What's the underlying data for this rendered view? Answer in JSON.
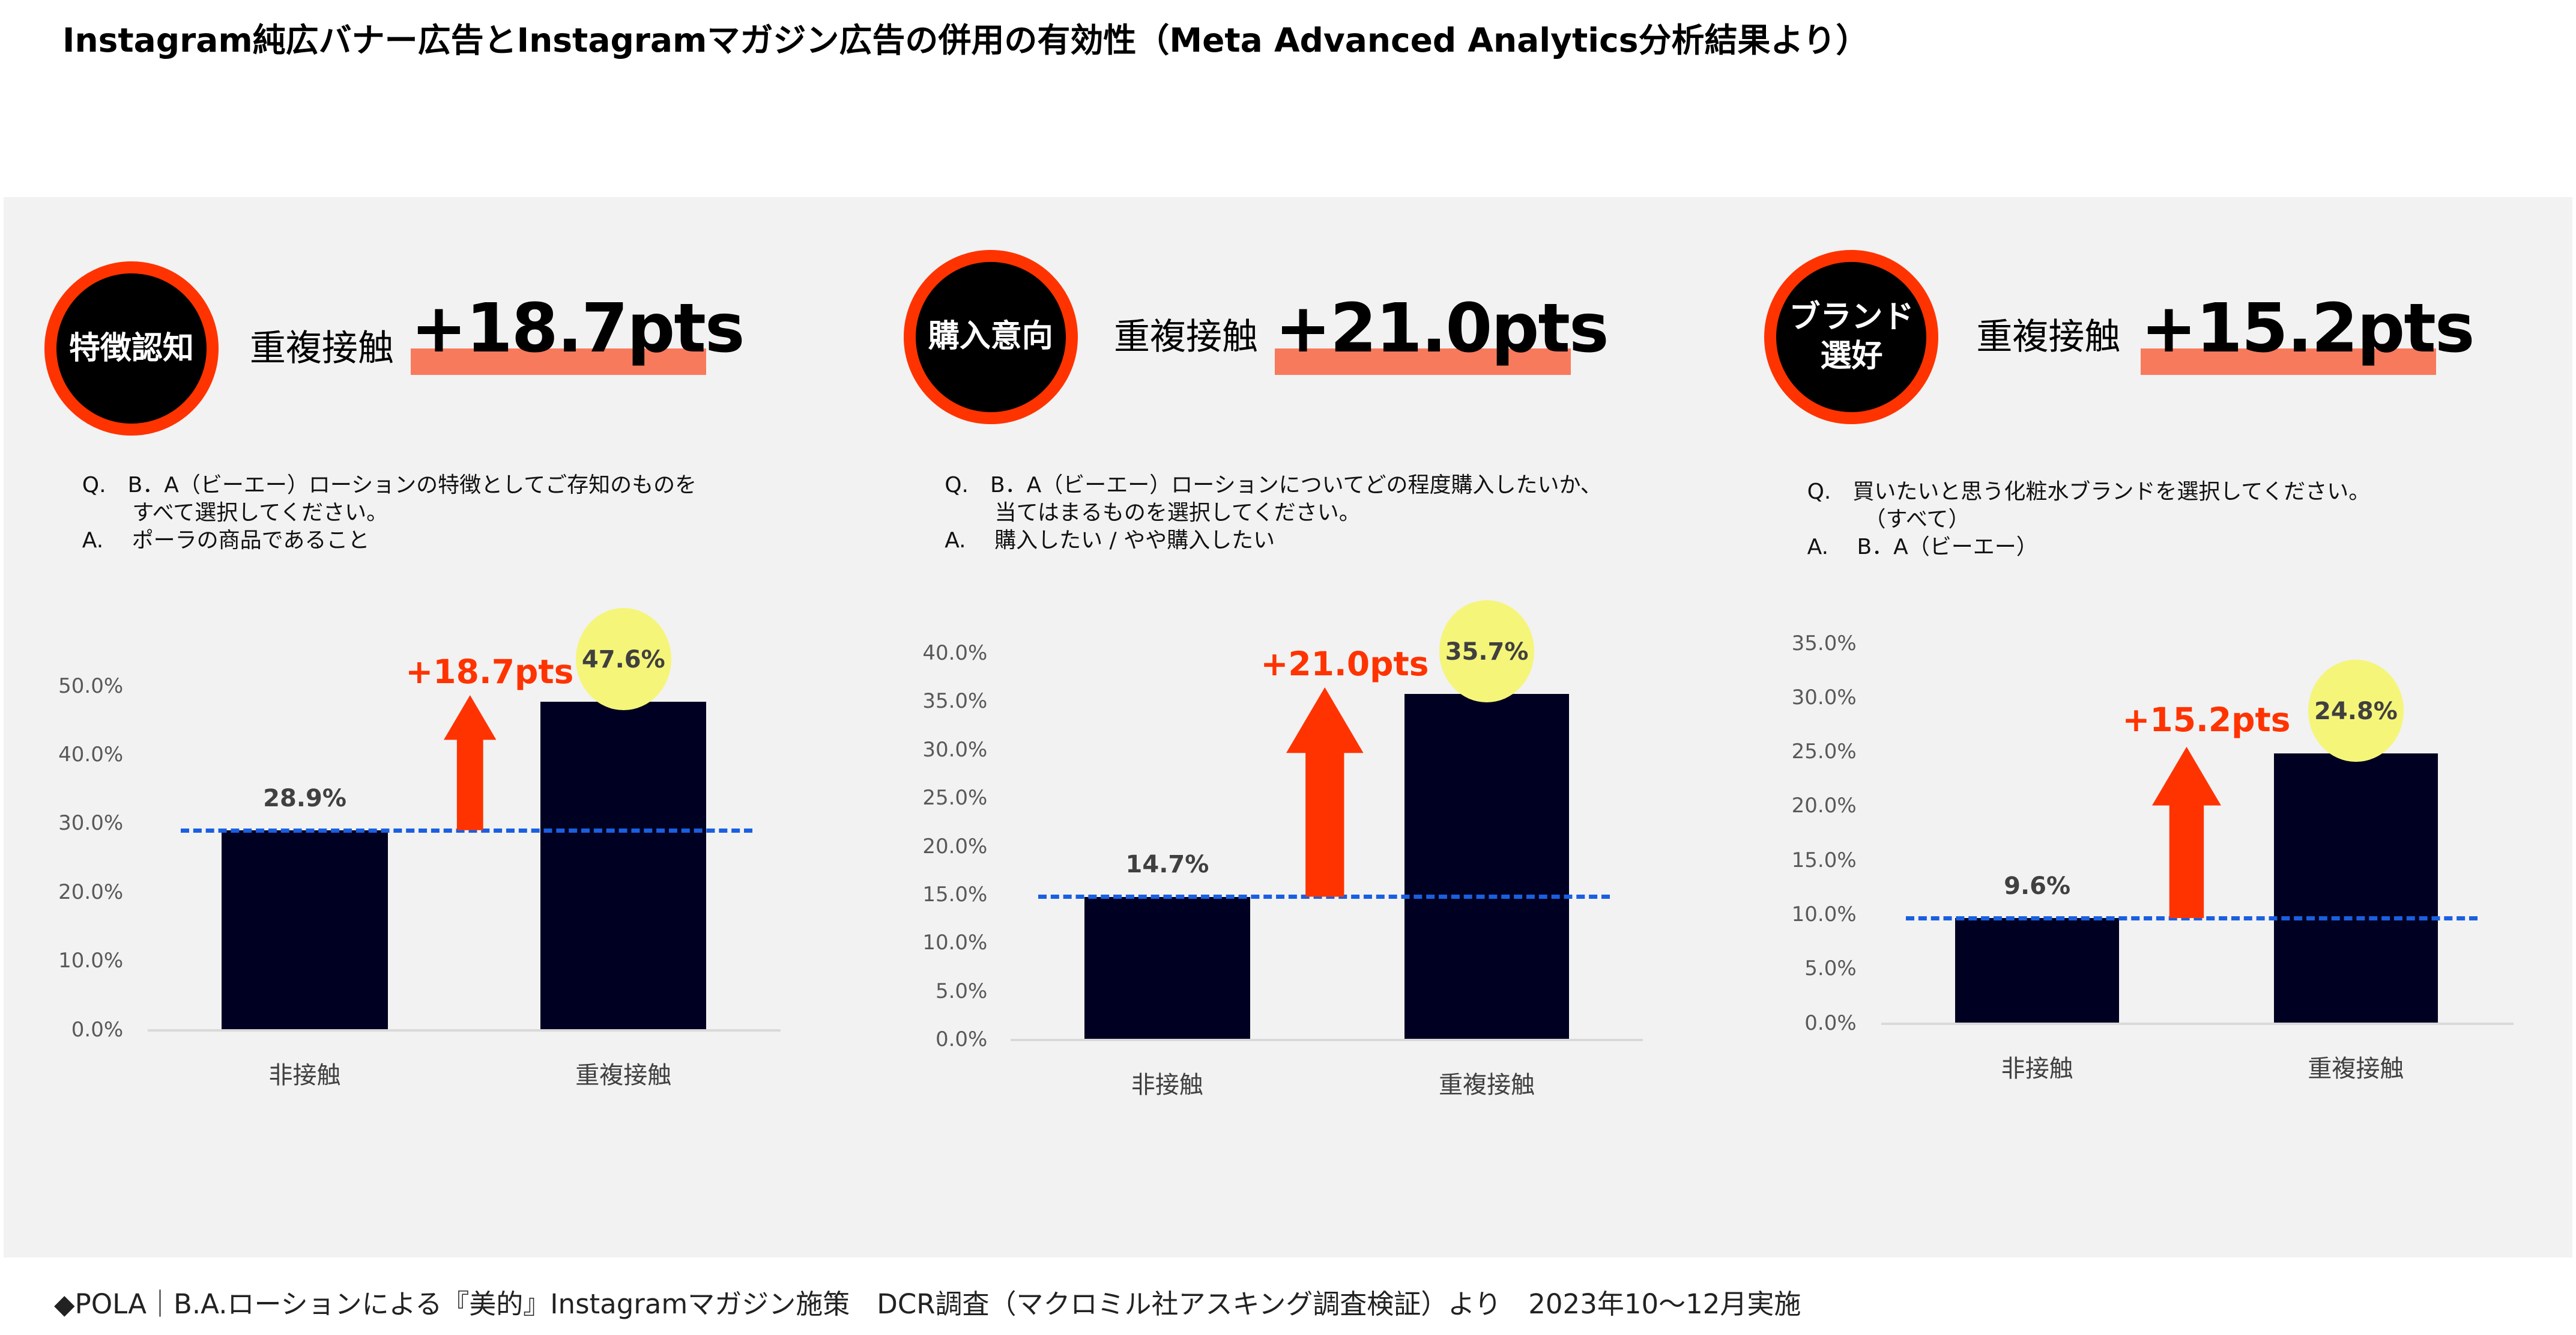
{
  "title": "Instagram純広バナー広告とInstagramマガジン広告の併用の有効性（Meta Advanced Analytics分析結果より）",
  "footer": "◆POLA｜B.A.ローションによる『美的』Instagramマガジン施策　DCR調査（マクロミル社アスキング調査検証）より　2023年10〜12月実施",
  "colors": {
    "accent": "#ff3300",
    "highlight": "#f87a5c",
    "bar": "#000022",
    "baseline_dash": "#1a5fe0",
    "value_circle": "#f5f57a",
    "panel_bg": "#f2f2f2"
  },
  "panels": [
    {
      "badge": "特徴認知",
      "headline_label": "重複接触",
      "headline_value": "+18.7pts",
      "question": "Q.　B．A（ビーエー）ローションの特徴としてご存知のものを\n　　 すべて選択してください。\nA.　 ポーラの商品であること"
    },
    {
      "badge": "購入意向",
      "headline_label": "重複接触",
      "headline_value": "+21.0pts",
      "question": "Q.　B．A（ビーエー）ローションについてどの程度購入したいか、\n　　 当てはまるものを選択してください。\nA.　 購入したい / やや購入したい"
    },
    {
      "badge": "ブランド\n選好",
      "headline_label": "重複接触",
      "headline_value": "+15.2pts",
      "question": "Q.　買いたいと思う化粧水ブランドを選択してください。\n　　  （すべて）\nA.　 B．A（ビーエー）"
    }
  ],
  "chart_data": [
    {
      "type": "bar",
      "categories": [
        "非接触",
        "重複接触"
      ],
      "values": [
        28.9,
        47.6
      ],
      "value_labels": [
        "28.9%",
        "47.6%"
      ],
      "ylim": [
        0,
        50
      ],
      "yticks": [
        "0.0%",
        "10.0%",
        "20.0%",
        "30.0%",
        "40.0%",
        "50.0%"
      ],
      "tick_values": [
        0,
        10,
        20,
        30,
        40,
        50
      ],
      "annotation": "+18.7pts",
      "reference_line": 28.9,
      "grid": false
    },
    {
      "type": "bar",
      "categories": [
        "非接触",
        "重複接触"
      ],
      "values": [
        14.7,
        35.7
      ],
      "value_labels": [
        "14.7%",
        "35.7%"
      ],
      "ylim": [
        0,
        40
      ],
      "yticks": [
        "0.0%",
        "5.0%",
        "10.0%",
        "15.0%",
        "20.0%",
        "25.0%",
        "30.0%",
        "35.0%",
        "40.0%"
      ],
      "tick_values": [
        0,
        5,
        10,
        15,
        20,
        25,
        30,
        35,
        40
      ],
      "annotation": "+21.0pts",
      "reference_line": 14.7,
      "grid": false
    },
    {
      "type": "bar",
      "categories": [
        "非接触",
        "重複接触"
      ],
      "values": [
        9.6,
        24.8
      ],
      "value_labels": [
        "9.6%",
        "24.8%"
      ],
      "ylim": [
        0,
        35
      ],
      "yticks": [
        "0.0%",
        "5.0%",
        "10.0%",
        "15.0%",
        "20.0%",
        "25.0%",
        "30.0%",
        "35.0%"
      ],
      "tick_values": [
        0,
        5,
        10,
        15,
        20,
        25,
        30,
        35
      ],
      "annotation": "+15.2pts",
      "reference_line": 9.6,
      "grid": false
    }
  ]
}
